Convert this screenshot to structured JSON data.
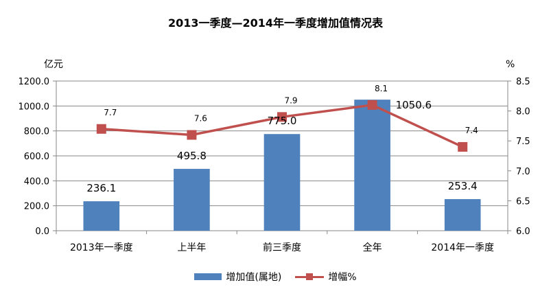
{
  "chart_data": {
    "type": "bar",
    "title": "2013一季度—2014年一季度增加值情况表",
    "categories": [
      "2013年一季度",
      "上半年",
      "前三季度",
      "全年",
      "2014年一季度"
    ],
    "left_unit": "亿元",
    "right_unit": "%",
    "y_ticks": [
      "0.0",
      "200.0",
      "400.0",
      "600.0",
      "800.0",
      "1000.0",
      "1200.0"
    ],
    "y2_ticks": [
      "6.0",
      "6.5",
      "7.0",
      "7.5",
      "8.0",
      "8.5"
    ],
    "ylim": [
      0,
      1200
    ],
    "y2lim": [
      6.0,
      8.5
    ],
    "series": [
      {
        "name": "增加值(属地)",
        "type": "bar",
        "color": "#4F81BD",
        "values": [
          236.1,
          495.8,
          775.0,
          1050.6,
          253.4
        ],
        "labels": [
          "236.1",
          "495.8",
          "775.0",
          "1050.6",
          "253.4"
        ]
      },
      {
        "name": "增幅%",
        "type": "line",
        "axis": "right",
        "color": "#C0504D",
        "values": [
          7.7,
          7.6,
          7.9,
          8.1,
          7.4
        ],
        "labels": [
          "7.7",
          "7.6",
          "7.9",
          "8.1",
          "7.4"
        ]
      }
    ],
    "legend_position": "bottom",
    "grid": true
  }
}
